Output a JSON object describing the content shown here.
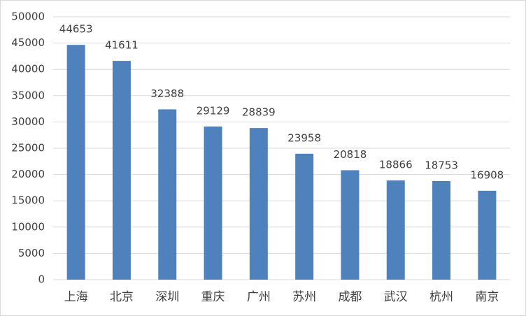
{
  "chart_data": {
    "type": "bar",
    "categories": [
      "上海",
      "北京",
      "深圳",
      "重庆",
      "广州",
      "苏州",
      "成都",
      "武汉",
      "杭州",
      "南京"
    ],
    "values": [
      44653,
      41611,
      32388,
      29129,
      28839,
      23958,
      20818,
      18866,
      18753,
      16908
    ],
    "color": "#4f81bd",
    "ylim": [
      0,
      50000
    ],
    "yticks": [
      0,
      5000,
      10000,
      15000,
      20000,
      25000,
      30000,
      35000,
      40000,
      45000,
      50000
    ],
    "grid": true,
    "data_labels": true
  }
}
